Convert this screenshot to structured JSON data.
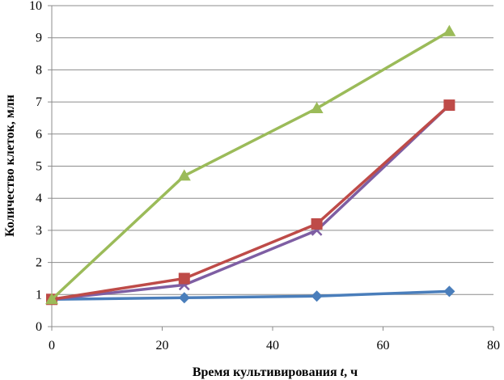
{
  "chart_data": {
    "type": "line",
    "title": "",
    "xlabel_prefix": "Время культивирования ",
    "xlabel_var": "t",
    "xlabel_suffix": ", ч",
    "ylabel": "Количество клеток, млн",
    "xlim": [
      0,
      80
    ],
    "ylim": [
      0,
      10
    ],
    "x_ticks": [
      "0",
      "20",
      "40",
      "60",
      "80"
    ],
    "y_ticks": [
      "0",
      "1",
      "2",
      "3",
      "4",
      "5",
      "6",
      "7",
      "8",
      "9",
      "10"
    ],
    "grid": "horizontal",
    "legend": "none",
    "series": [
      {
        "color": "#4a7ebb",
        "marker": "diamond",
        "points": [
          [
            0,
            0.85
          ],
          [
            24,
            0.9
          ],
          [
            48,
            0.95
          ],
          [
            72,
            1.1
          ]
        ]
      },
      {
        "color": "#7e5ea3",
        "marker": "x",
        "points": [
          [
            0,
            0.85
          ],
          [
            24,
            1.3
          ],
          [
            48,
            3.0
          ],
          [
            72,
            6.9
          ]
        ]
      },
      {
        "color": "#be4b48",
        "marker": "square",
        "points": [
          [
            0,
            0.85
          ],
          [
            24,
            1.5
          ],
          [
            48,
            3.2
          ],
          [
            72,
            6.9
          ]
        ]
      },
      {
        "color": "#9bbb59",
        "marker": "triangle",
        "points": [
          [
            0,
            0.85
          ],
          [
            24,
            4.7
          ],
          [
            48,
            6.8
          ],
          [
            72,
            9.2
          ]
        ]
      }
    ]
  }
}
